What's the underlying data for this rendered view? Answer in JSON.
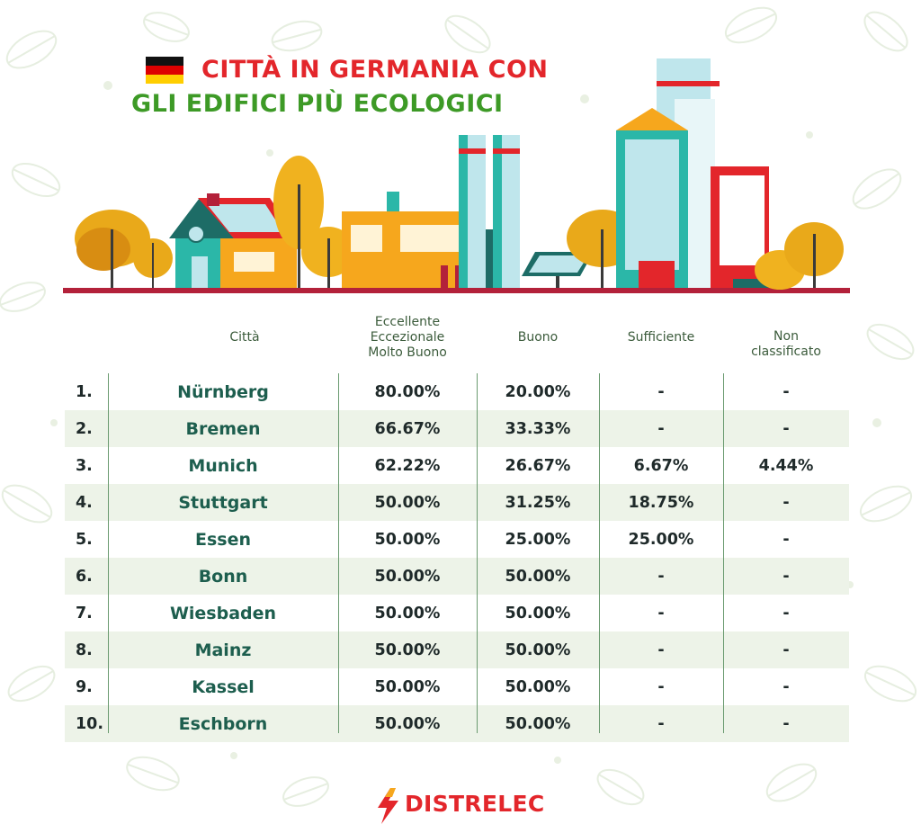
{
  "title": {
    "line1": "CITTÀ IN GERMANIA CON",
    "line2": "GLI EDIFICI PIÙ ECOLOGICI"
  },
  "colors": {
    "title_red": "#e3262b",
    "title_green": "#3d9a26",
    "city_teal": "#1d5e4e",
    "row_shade": "#edf3e8",
    "flag_black": "#111111",
    "flag_red": "#dd0000",
    "flag_gold": "#ffce00"
  },
  "chart_data": {
    "type": "table",
    "columns": [
      "",
      "Città",
      "Eccellente\nEccezionale\nMolto Buono",
      "Buono",
      "Sufficiente",
      "Non\nclassificato"
    ],
    "rows": [
      [
        "1.",
        "Nürnberg",
        "80.00%",
        "20.00%",
        "-",
        "-"
      ],
      [
        "2.",
        "Bremen",
        "66.67%",
        "33.33%",
        "-",
        "-"
      ],
      [
        "3.",
        "Munich",
        "62.22%",
        "26.67%",
        "6.67%",
        "4.44%"
      ],
      [
        "4.",
        "Stuttgart",
        "50.00%",
        "31.25%",
        "18.75%",
        "-"
      ],
      [
        "5.",
        "Essen",
        "50.00%",
        "25.00%",
        "25.00%",
        "-"
      ],
      [
        "6.",
        "Bonn",
        "50.00%",
        "50.00%",
        "-",
        "-"
      ],
      [
        "7.",
        "Wiesbaden",
        "50.00%",
        "50.00%",
        "-",
        "-"
      ],
      [
        "8.",
        "Mainz",
        "50.00%",
        "50.00%",
        "-",
        "-"
      ],
      [
        "9.",
        "Kassel",
        "50.00%",
        "50.00%",
        "-",
        "-"
      ],
      [
        "10.",
        "Eschborn",
        "50.00%",
        "50.00%",
        "-",
        "-"
      ]
    ]
  },
  "logo": {
    "text": "DISTRELEC",
    "icon": "lightning-bolt-icon"
  }
}
